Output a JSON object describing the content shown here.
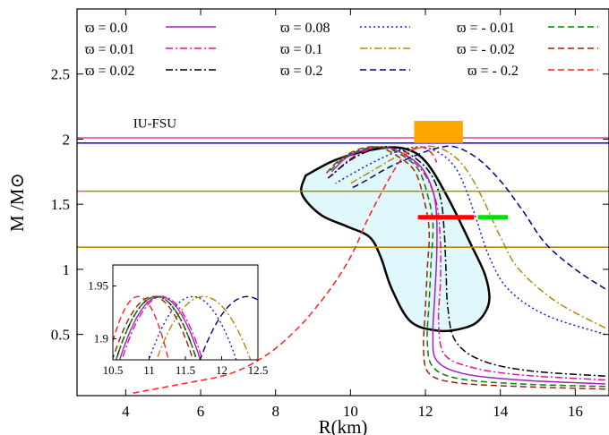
{
  "chart_data": {
    "type": "line",
    "title": "",
    "xlabel": "R(km)",
    "ylabel": "M /M⊙",
    "xlim": [
      2.7,
      16.9
    ],
    "ylim": [
      0.03,
      3.0
    ],
    "xticks": [
      "4",
      "6",
      "8",
      "10",
      "12",
      "14",
      "16"
    ],
    "yticks": [
      "0.5",
      "1",
      "1.5",
      "2",
      "2.5"
    ],
    "grid": false,
    "legend_position": "top",
    "series": [
      {
        "name": "ϖ = 0.0",
        "color": "#a020c0",
        "dash": "solid",
        "x": [
          16.8,
          14.5,
          13.0,
          12.3,
          12.2,
          12.25,
          12.3,
          12.3,
          12.2,
          11.9,
          11.4,
          10.9,
          10.4,
          9.9,
          9.5
        ],
        "y": [
          0.12,
          0.15,
          0.2,
          0.3,
          0.5,
          0.8,
          1.1,
          1.4,
          1.6,
          1.78,
          1.89,
          1.94,
          1.92,
          1.86,
          1.75
        ]
      },
      {
        "name": "ϖ = 0.01",
        "color": "#e0109a",
        "dash": "dashdot",
        "x": [
          16.8,
          14.5,
          13.2,
          12.5,
          12.35,
          12.4,
          12.4,
          12.3,
          12.0,
          11.5,
          11.0,
          10.5,
          10.0,
          9.5
        ],
        "y": [
          0.15,
          0.19,
          0.25,
          0.35,
          0.6,
          0.9,
          1.2,
          1.5,
          1.72,
          1.87,
          1.94,
          1.92,
          1.85,
          1.72
        ]
      },
      {
        "name": "ϖ = 0.02",
        "color": "#000000",
        "dash": "dashdot",
        "x": [
          16.8,
          14.8,
          13.5,
          12.8,
          12.6,
          12.55,
          12.5,
          12.4,
          12.1,
          11.6,
          11.1,
          10.6,
          10.0,
          9.4
        ],
        "y": [
          0.18,
          0.22,
          0.3,
          0.45,
          0.7,
          1.0,
          1.3,
          1.55,
          1.75,
          1.88,
          1.94,
          1.92,
          1.84,
          1.7
        ]
      },
      {
        "name": "ϖ = 0.08",
        "color": "#1a1acc",
        "dash": "dotted",
        "x": [
          16.8,
          15.2,
          14.2,
          13.7,
          13.4,
          13.1,
          12.8,
          12.4,
          11.9,
          11.4,
          10.8,
          10.2,
          9.6
        ],
        "y": [
          0.5,
          0.65,
          0.85,
          1.1,
          1.35,
          1.6,
          1.78,
          1.89,
          1.94,
          1.92,
          1.85,
          1.76,
          1.66
        ]
      },
      {
        "name": "ϖ = 0.1",
        "color": "#b8860b",
        "dash": "dashdot",
        "x": [
          16.8,
          15.5,
          14.5,
          14.0,
          13.6,
          13.2,
          12.8,
          12.3,
          11.8,
          11.2,
          10.6,
          10.0
        ],
        "y": [
          0.55,
          0.75,
          1.0,
          1.25,
          1.5,
          1.72,
          1.86,
          1.94,
          1.93,
          1.86,
          1.76,
          1.66
        ]
      },
      {
        "name": "ϖ = 0.2",
        "color": "#000080",
        "dash": "dashed",
        "x": [
          16.8,
          16.0,
          15.2,
          14.6,
          14.0,
          13.4,
          12.8,
          12.3,
          11.7,
          11.0,
          10.4,
          10.0
        ],
        "y": [
          0.85,
          1.0,
          1.2,
          1.45,
          1.68,
          1.85,
          1.94,
          1.93,
          1.87,
          1.78,
          1.68,
          1.62
        ]
      },
      {
        "name": "ϖ = - 0.01",
        "color": "#008000",
        "dash": "dashed",
        "x": [
          16.8,
          14.5,
          12.9,
          12.2,
          12.05,
          12.1,
          12.15,
          12.2,
          12.05,
          11.8,
          11.3,
          10.8,
          10.3,
          9.8,
          9.4
        ],
        "y": [
          0.1,
          0.12,
          0.16,
          0.25,
          0.45,
          0.75,
          1.05,
          1.35,
          1.58,
          1.77,
          1.89,
          1.94,
          1.92,
          1.85,
          1.74
        ]
      },
      {
        "name": "ϖ = - 0.02",
        "color": "#a0200a",
        "dash": "dashed",
        "x": [
          16.8,
          14.5,
          12.8,
          12.1,
          11.95,
          12.0,
          12.05,
          12.1,
          11.95,
          11.7,
          11.2,
          10.7,
          10.2,
          9.7,
          9.3
        ],
        "y": [
          0.08,
          0.1,
          0.13,
          0.2,
          0.38,
          0.7,
          1.0,
          1.3,
          1.55,
          1.76,
          1.88,
          1.94,
          1.92,
          1.84,
          1.72
        ]
      },
      {
        "name": "ϖ = - 0.2",
        "color": "#ff2020",
        "dash": "dashed",
        "x": [
          4.2,
          5.5,
          6.8,
          7.8,
          8.6,
          9.2,
          9.7,
          10.1,
          10.4,
          10.7,
          11.0,
          11.2,
          11.4,
          11.6,
          11.8,
          12.0,
          12.2,
          12.3
        ],
        "y": [
          0.05,
          0.12,
          0.2,
          0.35,
          0.55,
          0.75,
          0.95,
          1.15,
          1.35,
          1.52,
          1.68,
          1.78,
          1.86,
          1.91,
          1.94,
          1.93,
          1.88,
          1.82
        ]
      }
    ],
    "constraint_lines": [
      {
        "y": 2.01,
        "color": "#e040a0"
      },
      {
        "y": 1.97,
        "color": "#1a1acc"
      },
      {
        "y": 1.6,
        "color": "#b8860b"
      },
      {
        "y": 1.17,
        "color": "#b8860b"
      }
    ],
    "constraint_bars": [
      {
        "x": [
          11.7,
          13.0
        ],
        "y": [
          1.97,
          2.14
        ],
        "color": "#ffa500"
      },
      {
        "x": [
          11.8,
          13.3
        ],
        "y": [
          1.4,
          1.4
        ],
        "color": "#ff0000"
      },
      {
        "x": [
          13.4,
          14.2
        ],
        "y": [
          1.4,
          1.4
        ],
        "color": "#00e000"
      }
    ],
    "region_outline": {
      "fill": "#e0f8fc",
      "x": [
        8.8,
        9.6,
        10.6,
        11.4,
        12.0,
        12.6,
        13.2,
        13.6,
        13.7,
        13.4,
        12.9,
        12.3,
        11.6,
        11.1,
        10.8,
        10.5,
        9.9,
        9.2,
        8.7
      ],
      "y": [
        1.72,
        1.84,
        1.92,
        1.93,
        1.83,
        1.55,
        1.2,
        0.95,
        0.75,
        0.6,
        0.54,
        0.53,
        0.6,
        0.85,
        1.1,
        1.25,
        1.33,
        1.42,
        1.58
      ]
    },
    "annotations": [
      {
        "text": "IU-FSU",
        "x": 4.2,
        "y": 2.09
      }
    ],
    "inset": {
      "xlim": [
        10.5,
        12.5
      ],
      "ylim": [
        1.88,
        1.97
      ],
      "xticks": [
        "10.5",
        "11",
        "11.5",
        "12",
        "12.5"
      ],
      "yticks": [
        "1.9",
        "1.95"
      ],
      "top_line_y": 1.97,
      "peaks": [
        {
          "color": "#a020c0",
          "dash": "solid",
          "center": 11.15,
          "width": 0.6
        },
        {
          "color": "#e0109a",
          "dash": "dashdot",
          "center": 11.18,
          "width": 0.6
        },
        {
          "color": "#000000",
          "dash": "dashdot",
          "center": 11.1,
          "width": 0.6
        },
        {
          "color": "#1a1acc",
          "dash": "dotted",
          "center": 11.6,
          "width": 0.65
        },
        {
          "color": "#b8860b",
          "dash": "dashdot",
          "center": 11.75,
          "width": 0.7
        },
        {
          "color": "#000080",
          "dash": "dashed",
          "center": 12.35,
          "width": 0.7
        },
        {
          "color": "#008000",
          "dash": "dashed",
          "center": 11.1,
          "width": 0.6
        },
        {
          "color": "#a0200a",
          "dash": "dashed",
          "center": 11.05,
          "width": 0.6
        },
        {
          "color": "#ff2020",
          "dash": "dashed",
          "center": 10.85,
          "width": 0.45
        }
      ]
    }
  }
}
